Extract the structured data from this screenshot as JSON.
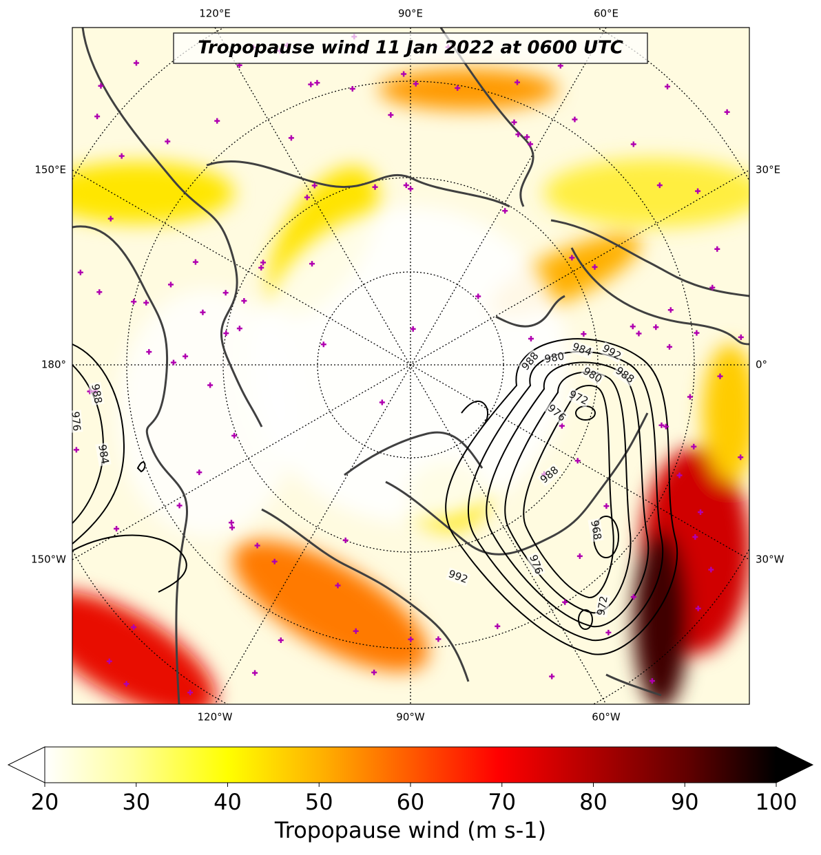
{
  "title": "Tropopause wind 11 Jan 2022 at 0600 UTC",
  "map": {
    "lon_labels": {
      "top": [
        "120°E",
        "90°E",
        "60°E"
      ],
      "bottom": [
        "120°W",
        "90°W",
        "60°W"
      ],
      "left": [
        "150°E",
        "180°",
        "150°W"
      ],
      "right": [
        "30°E",
        "0°",
        "30°W"
      ]
    },
    "contour_labels": [
      988,
      980,
      984,
      992,
      988,
      980,
      972,
      976,
      988,
      968,
      976,
      992,
      972,
      988,
      976,
      984
    ]
  },
  "colorbar": {
    "label": "Tropopause wind (m s-1)",
    "lim": [
      20,
      100
    ],
    "ticks": [
      20,
      30,
      40,
      50,
      60,
      70,
      80,
      90,
      100
    ]
  }
}
